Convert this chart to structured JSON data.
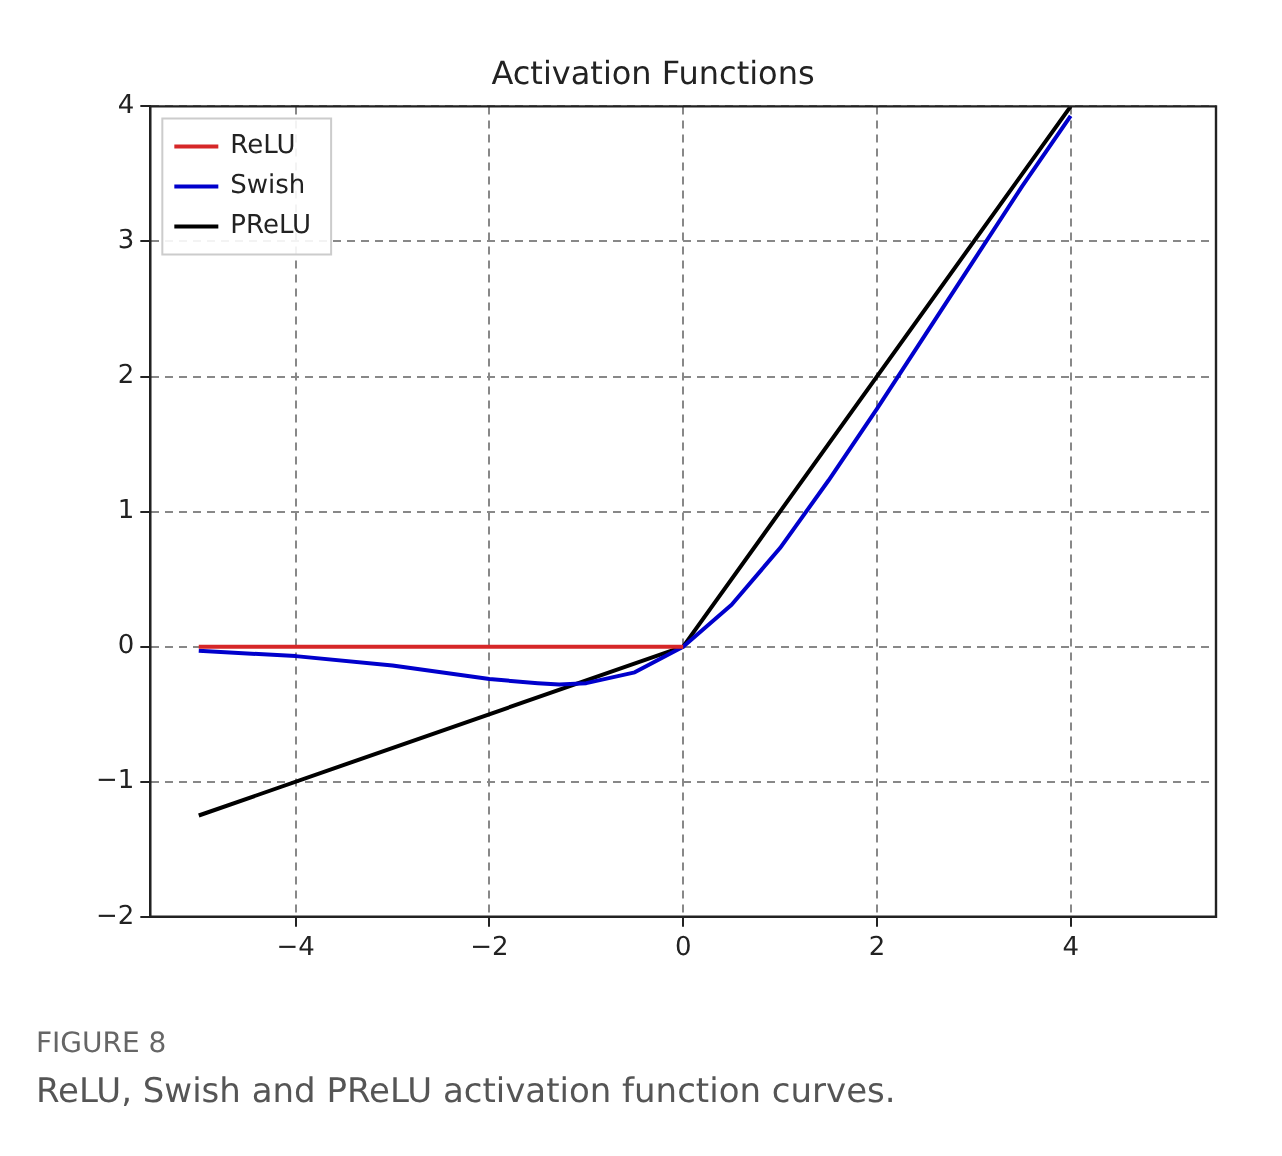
{
  "chart_data": {
    "type": "line",
    "title": "Activation Functions",
    "series": [
      {
        "name": "ReLU",
        "color": "#d62728",
        "x": [
          -5,
          0
        ],
        "values": [
          0,
          0
        ]
      },
      {
        "name": "Swish",
        "color": "#0000cc",
        "x": [
          -5,
          -4,
          -3,
          -2,
          -1.5,
          -1.28,
          -1,
          -0.5,
          0,
          0.5,
          1,
          1.5,
          2,
          2.5,
          3,
          3.5,
          4
        ],
        "values": [
          -0.03,
          -0.07,
          -0.14,
          -0.24,
          -0.27,
          -0.28,
          -0.27,
          -0.19,
          0,
          0.31,
          0.73,
          1.23,
          1.76,
          2.31,
          2.86,
          3.41,
          3.93
        ]
      },
      {
        "name": "PReLU",
        "color": "#000000",
        "x": [
          -5,
          0,
          4
        ],
        "values": [
          -1.25,
          0,
          4
        ]
      }
    ],
    "xlim": [
      -5.5,
      5.5
    ],
    "xticks": [
      {
        "value": -4,
        "label": "−4"
      },
      {
        "value": -2,
        "label": "−2"
      },
      0,
      2,
      4
    ],
    "ylim": [
      -2,
      4
    ],
    "yticks": [
      {
        "value": -2,
        "label": "−2"
      },
      {
        "value": -1,
        "label": "−1"
      },
      0,
      1,
      2,
      3,
      4
    ],
    "grid": true,
    "legend": "top left",
    "marker": "none",
    "line_style": "solid",
    "annotations": [
      "FIGURE 8",
      "ReLU, Swish and PReLU activation function curves."
    ]
  }
}
